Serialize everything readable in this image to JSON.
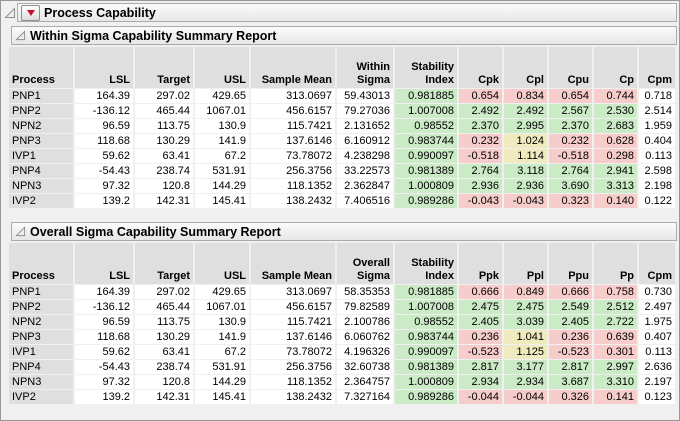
{
  "window": {
    "title": "Process Capability",
    "menu_icon": "red-triangle-menu"
  },
  "colors": {
    "accent_red": "#C8102E",
    "good_green": "#CBEAC6",
    "warn_yellow": "#F0EBBE",
    "bad_pink": "#F6CDCB",
    "header_gray": "#DFDFDF"
  },
  "sections": [
    {
      "title": "Within Sigma Capability Summary Report",
      "headers": [
        [
          "Process"
        ],
        [
          "LSL"
        ],
        [
          "Target"
        ],
        [
          "USL"
        ],
        [
          "Sample Mean"
        ],
        [
          "Within",
          "Sigma"
        ],
        [
          "Stability",
          "Index"
        ],
        [
          "Cpk"
        ],
        [
          "Cpl"
        ],
        [
          "Cpu"
        ],
        [
          "Cp"
        ],
        [
          "Cpm"
        ]
      ],
      "rows": [
        {
          "cells": [
            "PNP1",
            "164.39",
            "297.02",
            "429.65",
            "313.0697",
            "59.43013",
            "0.981885",
            "0.654",
            "0.834",
            "0.654",
            "0.744",
            "0.718"
          ],
          "flags": [
            null,
            null,
            null,
            null,
            null,
            null,
            "good",
            "bad",
            "bad",
            "bad",
            "bad",
            null
          ]
        },
        {
          "cells": [
            "PNP2",
            "-136.12",
            "465.44",
            "1067.01",
            "456.6157",
            "79.27036",
            "1.007008",
            "2.492",
            "2.492",
            "2.567",
            "2.530",
            "2.514"
          ],
          "flags": [
            null,
            null,
            null,
            null,
            null,
            null,
            "good",
            "good",
            "good",
            "good",
            "good",
            null
          ]
        },
        {
          "cells": [
            "NPN2",
            "96.59",
            "113.75",
            "130.9",
            "115.7421",
            "2.131652",
            "0.98552",
            "2.370",
            "2.995",
            "2.370",
            "2.683",
            "1.959"
          ],
          "flags": [
            null,
            null,
            null,
            null,
            null,
            null,
            "good",
            "good",
            "good",
            "good",
            "good",
            null
          ]
        },
        {
          "cells": [
            "PNP3",
            "118.68",
            "130.29",
            "141.9",
            "137.6146",
            "6.160912",
            "0.983744",
            "0.232",
            "1.024",
            "0.232",
            "0.628",
            "0.404"
          ],
          "flags": [
            null,
            null,
            null,
            null,
            null,
            null,
            "good",
            "bad",
            "warn",
            "bad",
            "bad",
            null
          ]
        },
        {
          "cells": [
            "IVP1",
            "59.62",
            "63.41",
            "67.2",
            "73.78072",
            "4.238298",
            "0.990097",
            "-0.518",
            "1.114",
            "-0.518",
            "0.298",
            "0.113"
          ],
          "flags": [
            null,
            null,
            null,
            null,
            null,
            null,
            "good",
            "bad",
            "warn",
            "bad",
            "bad",
            null
          ]
        },
        {
          "cells": [
            "PNP4",
            "-54.43",
            "238.74",
            "531.91",
            "256.3756",
            "33.22573",
            "0.981389",
            "2.764",
            "3.118",
            "2.764",
            "2.941",
            "2.598"
          ],
          "flags": [
            null,
            null,
            null,
            null,
            null,
            null,
            "good",
            "good",
            "good",
            "good",
            "good",
            null
          ]
        },
        {
          "cells": [
            "NPN3",
            "97.32",
            "120.8",
            "144.29",
            "118.1352",
            "2.362847",
            "1.000809",
            "2.936",
            "2.936",
            "3.690",
            "3.313",
            "2.198"
          ],
          "flags": [
            null,
            null,
            null,
            null,
            null,
            null,
            "good",
            "good",
            "good",
            "good",
            "good",
            null
          ]
        },
        {
          "cells": [
            "IVP2",
            "139.2",
            "142.31",
            "145.41",
            "138.2432",
            "7.406516",
            "0.989286",
            "-0.043",
            "-0.043",
            "0.323",
            "0.140",
            "0.122"
          ],
          "flags": [
            null,
            null,
            null,
            null,
            null,
            null,
            "good",
            "bad",
            "bad",
            "bad",
            "bad",
            null
          ]
        }
      ]
    },
    {
      "title": "Overall Sigma Capability Summary Report",
      "headers": [
        [
          "Process"
        ],
        [
          "LSL"
        ],
        [
          "Target"
        ],
        [
          "USL"
        ],
        [
          "Sample Mean"
        ],
        [
          "Overall",
          "Sigma"
        ],
        [
          "Stability",
          "Index"
        ],
        [
          "Ppk"
        ],
        [
          "Ppl"
        ],
        [
          "Ppu"
        ],
        [
          "Pp"
        ],
        [
          "Cpm"
        ]
      ],
      "rows": [
        {
          "cells": [
            "PNP1",
            "164.39",
            "297.02",
            "429.65",
            "313.0697",
            "58.35353",
            "0.981885",
            "0.666",
            "0.849",
            "0.666",
            "0.758",
            "0.730"
          ],
          "flags": [
            null,
            null,
            null,
            null,
            null,
            null,
            "good",
            "bad",
            "bad",
            "bad",
            "bad",
            null
          ]
        },
        {
          "cells": [
            "PNP2",
            "-136.12",
            "465.44",
            "1067.01",
            "456.6157",
            "79.82589",
            "1.007008",
            "2.475",
            "2.475",
            "2.549",
            "2.512",
            "2.497"
          ],
          "flags": [
            null,
            null,
            null,
            null,
            null,
            null,
            "good",
            "good",
            "good",
            "good",
            "good",
            null
          ]
        },
        {
          "cells": [
            "NPN2",
            "96.59",
            "113.75",
            "130.9",
            "115.7421",
            "2.100786",
            "0.98552",
            "2.405",
            "3.039",
            "2.405",
            "2.722",
            "1.975"
          ],
          "flags": [
            null,
            null,
            null,
            null,
            null,
            null,
            "good",
            "good",
            "good",
            "good",
            "good",
            null
          ]
        },
        {
          "cells": [
            "PNP3",
            "118.68",
            "130.29",
            "141.9",
            "137.6146",
            "6.060762",
            "0.983744",
            "0.236",
            "1.041",
            "0.236",
            "0.639",
            "0.407"
          ],
          "flags": [
            null,
            null,
            null,
            null,
            null,
            null,
            "good",
            "bad",
            "warn",
            "bad",
            "bad",
            null
          ]
        },
        {
          "cells": [
            "IVP1",
            "59.62",
            "63.41",
            "67.2",
            "73.78072",
            "4.196326",
            "0.990097",
            "-0.523",
            "1.125",
            "-0.523",
            "0.301",
            "0.113"
          ],
          "flags": [
            null,
            null,
            null,
            null,
            null,
            null,
            "good",
            "bad",
            "warn",
            "bad",
            "bad",
            null
          ]
        },
        {
          "cells": [
            "PNP4",
            "-54.43",
            "238.74",
            "531.91",
            "256.3756",
            "32.60738",
            "0.981389",
            "2.817",
            "3.177",
            "2.817",
            "2.997",
            "2.636"
          ],
          "flags": [
            null,
            null,
            null,
            null,
            null,
            null,
            "good",
            "good",
            "good",
            "good",
            "good",
            null
          ]
        },
        {
          "cells": [
            "NPN3",
            "97.32",
            "120.8",
            "144.29",
            "118.1352",
            "2.364757",
            "1.000809",
            "2.934",
            "2.934",
            "3.687",
            "3.310",
            "2.197"
          ],
          "flags": [
            null,
            null,
            null,
            null,
            null,
            null,
            "good",
            "good",
            "good",
            "good",
            "good",
            null
          ]
        },
        {
          "cells": [
            "IVP2",
            "139.2",
            "142.31",
            "145.41",
            "138.2432",
            "7.327164",
            "0.989286",
            "-0.044",
            "-0.044",
            "0.326",
            "0.141",
            "0.123"
          ],
          "flags": [
            null,
            null,
            null,
            null,
            null,
            null,
            "good",
            "bad",
            "bad",
            "bad",
            "bad",
            null
          ]
        }
      ]
    }
  ]
}
